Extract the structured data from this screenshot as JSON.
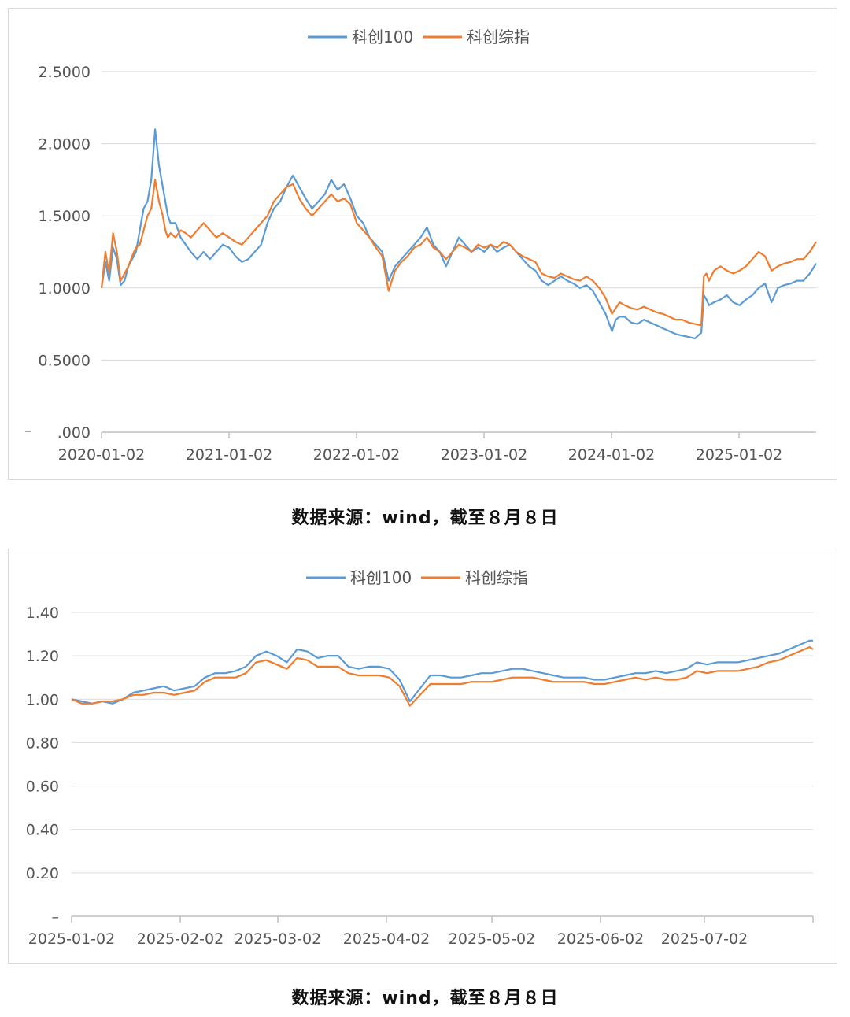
{
  "colors": {
    "kc100": "#5b9bd5",
    "kczz": "#ed7d31",
    "grid": "#d9d9d9",
    "axis": "#bfbfbf"
  },
  "captions": {
    "chart1": "数据来源：wind，截至８月８日",
    "chart2": "数据来源：wind，截至８月８日"
  },
  "chart_data": [
    {
      "type": "line",
      "legend": [
        "科创100",
        "科创综指"
      ],
      "legend_position": "top-center",
      "grid": true,
      "ylim": [
        0,
        2.5
      ],
      "yticks": [
        0,
        0.5,
        1.0,
        1.5,
        2.0,
        2.5
      ],
      "ytick_labels": [
        ".000",
        "0.5000",
        "1.0000",
        "1.5000",
        "2.0000",
        "2.5000"
      ],
      "ytick_zero_prefix": "–",
      "xtick_labels": [
        "2020-01-02",
        "2021-01-02",
        "2022-01-02",
        "2023-01-02",
        "2024-01-02",
        "2025-01-02"
      ],
      "x_range": [
        2020.0,
        2025.6
      ],
      "series": [
        {
          "name": "科创100",
          "x": [
            2020.0,
            2020.03,
            2020.06,
            2020.09,
            2020.12,
            2020.15,
            2020.18,
            2020.21,
            2020.24,
            2020.27,
            2020.3,
            2020.33,
            2020.36,
            2020.39,
            2020.42,
            2020.45,
            2020.48,
            2020.5,
            2020.52,
            2020.54,
            2020.58,
            2020.62,
            2020.66,
            2020.7,
            2020.75,
            2020.8,
            2020.85,
            2020.9,
            2020.95,
            2021.0,
            2021.05,
            2021.1,
            2021.15,
            2021.2,
            2021.25,
            2021.3,
            2021.35,
            2021.4,
            2021.45,
            2021.5,
            2021.55,
            2021.6,
            2021.65,
            2021.7,
            2021.75,
            2021.8,
            2021.85,
            2021.9,
            2021.95,
            2022.0,
            2022.05,
            2022.1,
            2022.15,
            2022.2,
            2022.25,
            2022.3,
            2022.35,
            2022.4,
            2022.45,
            2022.5,
            2022.55,
            2022.6,
            2022.65,
            2022.7,
            2022.75,
            2022.8,
            2022.85,
            2022.9,
            2022.95,
            2023.0,
            2023.05,
            2023.1,
            2023.15,
            2023.2,
            2023.25,
            2023.3,
            2023.35,
            2023.4,
            2023.45,
            2023.5,
            2023.55,
            2023.6,
            2023.65,
            2023.7,
            2023.75,
            2023.8,
            2023.85,
            2023.9,
            2023.95,
            2024.0,
            2024.03,
            2024.06,
            2024.1,
            2024.15,
            2024.2,
            2024.25,
            2024.3,
            2024.35,
            2024.4,
            2024.45,
            2024.5,
            2024.55,
            2024.6,
            2024.65,
            2024.7,
            2024.72,
            2024.74,
            2024.76,
            2024.8,
            2024.85,
            2024.9,
            2024.95,
            2025.0,
            2025.05,
            2025.1,
            2025.15,
            2025.2,
            2025.25,
            2025.3,
            2025.35,
            2025.4,
            2025.45,
            2025.5,
            2025.55,
            2025.6
          ],
          "values": [
            1.0,
            1.18,
            1.05,
            1.28,
            1.2,
            1.02,
            1.05,
            1.15,
            1.2,
            1.25,
            1.4,
            1.55,
            1.6,
            1.75,
            2.1,
            1.85,
            1.7,
            1.6,
            1.5,
            1.45,
            1.45,
            1.35,
            1.3,
            1.25,
            1.2,
            1.25,
            1.2,
            1.25,
            1.3,
            1.28,
            1.22,
            1.18,
            1.2,
            1.25,
            1.3,
            1.45,
            1.55,
            1.6,
            1.7,
            1.78,
            1.7,
            1.62,
            1.55,
            1.6,
            1.65,
            1.75,
            1.68,
            1.72,
            1.62,
            1.5,
            1.45,
            1.35,
            1.3,
            1.25,
            1.05,
            1.15,
            1.2,
            1.25,
            1.3,
            1.35,
            1.42,
            1.3,
            1.25,
            1.15,
            1.25,
            1.35,
            1.3,
            1.25,
            1.28,
            1.25,
            1.3,
            1.25,
            1.28,
            1.3,
            1.25,
            1.2,
            1.15,
            1.12,
            1.05,
            1.02,
            1.05,
            1.08,
            1.05,
            1.03,
            1.0,
            1.02,
            0.98,
            0.9,
            0.82,
            0.7,
            0.78,
            0.8,
            0.8,
            0.76,
            0.75,
            0.78,
            0.76,
            0.74,
            0.72,
            0.7,
            0.68,
            0.67,
            0.66,
            0.65,
            0.69,
            0.95,
            0.92,
            0.88,
            0.9,
            0.92,
            0.95,
            0.9,
            0.88,
            0.92,
            0.95,
            1.0,
            1.03,
            0.9,
            1.0,
            1.02,
            1.03,
            1.05,
            1.05,
            1.1,
            1.17
          ]
        },
        {
          "name": "科创综指",
          "x": [
            2020.0,
            2020.03,
            2020.06,
            2020.09,
            2020.12,
            2020.15,
            2020.18,
            2020.21,
            2020.24,
            2020.27,
            2020.3,
            2020.33,
            2020.36,
            2020.39,
            2020.42,
            2020.45,
            2020.48,
            2020.5,
            2020.52,
            2020.54,
            2020.58,
            2020.62,
            2020.66,
            2020.7,
            2020.75,
            2020.8,
            2020.85,
            2020.9,
            2020.95,
            2021.0,
            2021.05,
            2021.1,
            2021.15,
            2021.2,
            2021.25,
            2021.3,
            2021.35,
            2021.4,
            2021.45,
            2021.5,
            2021.55,
            2021.6,
            2021.65,
            2021.7,
            2021.75,
            2021.8,
            2021.85,
            2021.9,
            2021.95,
            2022.0,
            2022.05,
            2022.1,
            2022.15,
            2022.2,
            2022.25,
            2022.3,
            2022.35,
            2022.4,
            2022.45,
            2022.5,
            2022.55,
            2022.6,
            2022.65,
            2022.7,
            2022.75,
            2022.8,
            2022.85,
            2022.9,
            2022.95,
            2023.0,
            2023.05,
            2023.1,
            2023.15,
            2023.2,
            2023.25,
            2023.3,
            2023.35,
            2023.4,
            2023.45,
            2023.5,
            2023.55,
            2023.6,
            2023.65,
            2023.7,
            2023.75,
            2023.8,
            2023.85,
            2023.9,
            2023.95,
            2024.0,
            2024.03,
            2024.06,
            2024.1,
            2024.15,
            2024.2,
            2024.25,
            2024.3,
            2024.35,
            2024.4,
            2024.45,
            2024.5,
            2024.55,
            2024.6,
            2024.65,
            2024.7,
            2024.72,
            2024.74,
            2024.76,
            2024.8,
            2024.85,
            2024.9,
            2024.95,
            2025.0,
            2025.05,
            2025.1,
            2025.15,
            2025.2,
            2025.25,
            2025.3,
            2025.35,
            2025.4,
            2025.45,
            2025.5,
            2025.55,
            2025.6
          ],
          "values": [
            1.0,
            1.25,
            1.1,
            1.38,
            1.25,
            1.05,
            1.1,
            1.15,
            1.22,
            1.28,
            1.3,
            1.4,
            1.5,
            1.55,
            1.75,
            1.6,
            1.5,
            1.4,
            1.35,
            1.38,
            1.35,
            1.4,
            1.38,
            1.35,
            1.4,
            1.45,
            1.4,
            1.35,
            1.38,
            1.35,
            1.32,
            1.3,
            1.35,
            1.4,
            1.45,
            1.5,
            1.6,
            1.65,
            1.7,
            1.72,
            1.62,
            1.55,
            1.5,
            1.55,
            1.6,
            1.65,
            1.6,
            1.62,
            1.58,
            1.45,
            1.4,
            1.35,
            1.28,
            1.22,
            0.98,
            1.12,
            1.18,
            1.22,
            1.28,
            1.3,
            1.35,
            1.28,
            1.25,
            1.2,
            1.25,
            1.3,
            1.28,
            1.25,
            1.3,
            1.28,
            1.3,
            1.28,
            1.32,
            1.3,
            1.25,
            1.22,
            1.2,
            1.18,
            1.1,
            1.08,
            1.07,
            1.1,
            1.08,
            1.06,
            1.05,
            1.08,
            1.05,
            1.0,
            0.93,
            0.82,
            0.86,
            0.9,
            0.88,
            0.86,
            0.85,
            0.87,
            0.85,
            0.83,
            0.82,
            0.8,
            0.78,
            0.78,
            0.76,
            0.75,
            0.74,
            1.08,
            1.1,
            1.05,
            1.12,
            1.15,
            1.12,
            1.1,
            1.12,
            1.15,
            1.2,
            1.25,
            1.22,
            1.12,
            1.15,
            1.17,
            1.18,
            1.2,
            1.2,
            1.25,
            1.32
          ]
        }
      ]
    },
    {
      "type": "line",
      "legend": [
        "科创100",
        "科创综指"
      ],
      "legend_position": "top-center",
      "grid": true,
      "ylim": [
        0,
        1.4
      ],
      "yticks": [
        0,
        0.2,
        0.4,
        0.6,
        0.8,
        1.0,
        1.2,
        1.4
      ],
      "ytick_labels": [
        "–",
        "0.20",
        "0.40",
        "0.60",
        "0.80",
        "1.00",
        "1.20",
        "1.40"
      ],
      "xtick_labels": [
        "2025-01-02",
        "2025-02-02",
        "2025-03-02",
        "2025-04-02",
        "2025-05-02",
        "2025-06-02",
        "2025-07-02"
      ],
      "x_range": [
        0,
        217
      ],
      "series": [
        {
          "name": "科创100",
          "x": [
            0,
            3,
            6,
            9,
            12,
            15,
            18,
            21,
            24,
            27,
            30,
            33,
            36,
            39,
            42,
            45,
            48,
            51,
            54,
            57,
            60,
            63,
            66,
            69,
            72,
            75,
            78,
            81,
            84,
            87,
            90,
            93,
            96,
            99,
            102,
            105,
            108,
            111,
            114,
            117,
            120,
            123,
            126,
            129,
            132,
            135,
            138,
            141,
            144,
            147,
            150,
            153,
            156,
            159,
            162,
            165,
            168,
            171,
            174,
            177,
            180,
            183,
            186,
            189,
            192,
            195,
            198,
            201,
            204,
            207,
            210,
            213,
            216,
            217
          ],
          "values": [
            1.0,
            0.99,
            0.98,
            0.99,
            0.98,
            1.0,
            1.03,
            1.04,
            1.05,
            1.06,
            1.04,
            1.05,
            1.06,
            1.1,
            1.12,
            1.12,
            1.13,
            1.15,
            1.2,
            1.22,
            1.2,
            1.17,
            1.23,
            1.22,
            1.19,
            1.2,
            1.2,
            1.15,
            1.14,
            1.15,
            1.15,
            1.14,
            1.09,
            0.99,
            1.05,
            1.11,
            1.11,
            1.1,
            1.1,
            1.11,
            1.12,
            1.12,
            1.13,
            1.14,
            1.14,
            1.13,
            1.12,
            1.11,
            1.1,
            1.1,
            1.1,
            1.09,
            1.09,
            1.1,
            1.11,
            1.12,
            1.12,
            1.13,
            1.12,
            1.13,
            1.14,
            1.17,
            1.16,
            1.17,
            1.17,
            1.17,
            1.18,
            1.19,
            1.2,
            1.21,
            1.23,
            1.25,
            1.27,
            1.27
          ]
        },
        {
          "name": "科创综指",
          "x": [
            0,
            3,
            6,
            9,
            12,
            15,
            18,
            21,
            24,
            27,
            30,
            33,
            36,
            39,
            42,
            45,
            48,
            51,
            54,
            57,
            60,
            63,
            66,
            69,
            72,
            75,
            78,
            81,
            84,
            87,
            90,
            93,
            96,
            99,
            102,
            105,
            108,
            111,
            114,
            117,
            120,
            123,
            126,
            129,
            132,
            135,
            138,
            141,
            144,
            147,
            150,
            153,
            156,
            159,
            162,
            165,
            168,
            171,
            174,
            177,
            180,
            183,
            186,
            189,
            192,
            195,
            198,
            201,
            204,
            207,
            210,
            213,
            216,
            217
          ],
          "values": [
            1.0,
            0.98,
            0.98,
            0.99,
            0.99,
            1.0,
            1.02,
            1.02,
            1.03,
            1.03,
            1.02,
            1.03,
            1.04,
            1.08,
            1.1,
            1.1,
            1.1,
            1.12,
            1.17,
            1.18,
            1.16,
            1.14,
            1.19,
            1.18,
            1.15,
            1.15,
            1.15,
            1.12,
            1.11,
            1.11,
            1.11,
            1.1,
            1.06,
            0.97,
            1.02,
            1.07,
            1.07,
            1.07,
            1.07,
            1.08,
            1.08,
            1.08,
            1.09,
            1.1,
            1.1,
            1.1,
            1.09,
            1.08,
            1.08,
            1.08,
            1.08,
            1.07,
            1.07,
            1.08,
            1.09,
            1.1,
            1.09,
            1.1,
            1.09,
            1.09,
            1.1,
            1.13,
            1.12,
            1.13,
            1.13,
            1.13,
            1.14,
            1.15,
            1.17,
            1.18,
            1.2,
            1.22,
            1.24,
            1.23
          ]
        }
      ]
    }
  ]
}
